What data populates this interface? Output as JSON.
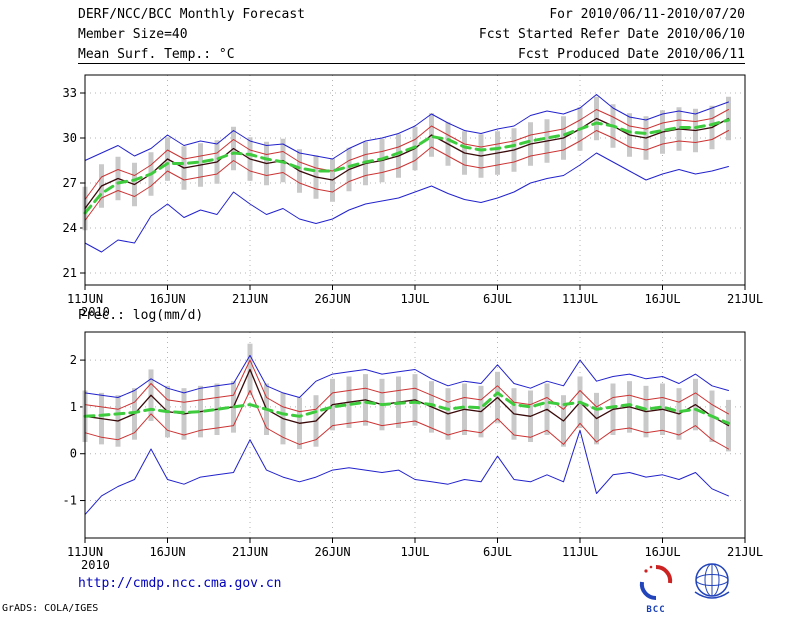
{
  "header": {
    "title": "DERF/NCC/BCC Monthly Forecast",
    "member_size": "Member Size=40",
    "panel1_label": "Mean Surf. Temp.: °C",
    "panel2_label": "Prec.: log(mm/d)",
    "for_range": "For 2010/06/11-2010/07/20",
    "refer_date": "Fcst Started Refer Date 2010/06/10",
    "produced_date": "Fcst Produced Date 2010/06/11"
  },
  "footer": {
    "url": "http://cmdp.ncc.cma.gov.cn",
    "credit": "GrADS: COLA/IGES",
    "bcc_logo_label": "BCC"
  },
  "colors": {
    "envelope_blue": "#2222cc",
    "quartile_red": "#cc3333",
    "mean_dark": "#3a0a0a",
    "climatology_green": "#3ecc3e",
    "spread_bar_gray": "#c9c9c9",
    "grid_gray": "#b4b4b4"
  },
  "chart_data": [
    {
      "type": "line",
      "title": "Mean Surf. Temp.: °C",
      "ylabel": "°C",
      "ylim": [
        20.2,
        34.2
      ],
      "yticks": [
        21,
        24,
        27,
        30,
        33
      ],
      "x_ticks": [
        "11JUN",
        "16JUN",
        "21JUN",
        "26JUN",
        "1JUL",
        "6JUL",
        "11JUL",
        "16JUL",
        "21JUL"
      ],
      "x_tick_days": [
        0,
        5,
        10,
        15,
        20,
        25,
        30,
        35,
        40
      ],
      "x_year_label": "2010",
      "n_days": 40,
      "grid": true,
      "legend": "none",
      "bars": {
        "center_series": 2,
        "half_width": 1.45,
        "color": "#c9c9c9"
      },
      "series": [
        {
          "name": "ensemble-max",
          "color": "#2222cc",
          "width": 1,
          "values": [
            28.5,
            29.0,
            29.5,
            28.8,
            29.3,
            30.2,
            29.5,
            29.8,
            29.6,
            30.5,
            29.8,
            29.5,
            29.6,
            29.0,
            28.8,
            28.6,
            29.3,
            29.8,
            30.0,
            30.3,
            30.8,
            31.6,
            31.0,
            30.5,
            30.3,
            30.6,
            30.8,
            31.5,
            31.8,
            31.6,
            32.0,
            32.9,
            32.0,
            31.4,
            31.2,
            31.6,
            31.8,
            31.6,
            32.0,
            32.4
          ]
        },
        {
          "name": "upper-quartile",
          "color": "#cc3333",
          "width": 1,
          "values": [
            25.9,
            27.4,
            27.9,
            27.5,
            28.2,
            29.2,
            28.6,
            28.8,
            29.0,
            29.9,
            29.2,
            28.9,
            29.1,
            28.4,
            28.0,
            27.8,
            28.5,
            28.9,
            29.1,
            29.4,
            29.9,
            30.8,
            30.2,
            29.6,
            29.4,
            29.6,
            29.8,
            30.2,
            30.4,
            30.6,
            31.2,
            31.9,
            31.4,
            30.8,
            30.6,
            31.0,
            31.2,
            31.1,
            31.3,
            31.9
          ]
        },
        {
          "name": "ensemble-mean",
          "color": "#3a0a0a",
          "width": 1.3,
          "values": [
            25.3,
            26.8,
            27.3,
            26.9,
            27.6,
            28.6,
            28.0,
            28.2,
            28.4,
            29.3,
            28.6,
            28.3,
            28.5,
            27.8,
            27.4,
            27.2,
            27.9,
            28.3,
            28.5,
            28.8,
            29.3,
            30.2,
            29.6,
            29.0,
            28.8,
            29.0,
            29.2,
            29.6,
            29.8,
            30.0,
            30.6,
            31.3,
            30.8,
            30.2,
            30.0,
            30.4,
            30.6,
            30.5,
            30.7,
            31.3
          ]
        },
        {
          "name": "lower-quartile",
          "color": "#cc3333",
          "width": 1,
          "values": [
            24.5,
            26.0,
            26.5,
            26.1,
            26.8,
            27.8,
            27.2,
            27.4,
            27.6,
            28.5,
            27.8,
            27.5,
            27.7,
            27.0,
            26.6,
            26.4,
            27.1,
            27.5,
            27.7,
            28.0,
            28.5,
            29.4,
            28.8,
            28.2,
            28.0,
            28.2,
            28.4,
            28.8,
            29.0,
            29.2,
            29.8,
            30.5,
            30.0,
            29.4,
            29.2,
            29.6,
            29.8,
            29.7,
            29.9,
            30.5
          ]
        },
        {
          "name": "ensemble-min",
          "color": "#2222cc",
          "width": 1,
          "values": [
            23.0,
            22.4,
            23.2,
            23.0,
            24.8,
            25.6,
            24.7,
            25.2,
            24.9,
            26.4,
            25.6,
            24.9,
            25.3,
            24.6,
            24.3,
            24.6,
            25.2,
            25.6,
            25.8,
            26.0,
            26.4,
            26.8,
            26.3,
            25.9,
            25.7,
            26.0,
            26.4,
            27.0,
            27.3,
            27.5,
            28.2,
            29.0,
            28.4,
            27.8,
            27.2,
            27.6,
            27.9,
            27.6,
            27.8,
            28.1
          ]
        },
        {
          "name": "climatology",
          "color": "#3ecc3e",
          "width": 3,
          "dash": "9,6",
          "values": [
            25.0,
            26.3,
            27.0,
            27.2,
            27.6,
            28.3,
            28.3,
            28.4,
            28.6,
            29.0,
            28.9,
            28.6,
            28.4,
            28.0,
            27.8,
            27.8,
            28.1,
            28.4,
            28.6,
            29.0,
            29.4,
            30.1,
            29.9,
            29.4,
            29.2,
            29.3,
            29.5,
            29.8,
            30.0,
            30.2,
            30.6,
            31.0,
            30.8,
            30.4,
            30.3,
            30.5,
            30.7,
            30.7,
            30.9,
            31.2
          ]
        }
      ]
    },
    {
      "type": "line",
      "title": "Prec.: log(mm/d)",
      "ylabel": "log(mm/d)",
      "ylim": [
        -1.8,
        2.6
      ],
      "yticks": [
        -1,
        0,
        1,
        2
      ],
      "x_ticks": [
        "11JUN",
        "16JUN",
        "21JUN",
        "26JUN",
        "1JUL",
        "6JUL",
        "11JUL",
        "16JUL",
        "21JUL"
      ],
      "x_tick_days": [
        0,
        5,
        10,
        15,
        20,
        25,
        30,
        35,
        40
      ],
      "x_year_label": "2010",
      "n_days": 40,
      "grid": true,
      "legend": "none",
      "bars": {
        "center_series": 2,
        "half_width": 0.55,
        "color": "#c9c9c9"
      },
      "series": [
        {
          "name": "ensemble-max",
          "color": "#2222cc",
          "width": 1,
          "values": [
            1.3,
            1.25,
            1.2,
            1.35,
            1.6,
            1.4,
            1.3,
            1.4,
            1.45,
            1.5,
            2.1,
            1.45,
            1.3,
            1.2,
            1.55,
            1.7,
            1.75,
            1.8,
            1.7,
            1.75,
            1.8,
            1.6,
            1.45,
            1.55,
            1.5,
            1.9,
            1.5,
            1.4,
            1.55,
            1.45,
            2.0,
            1.55,
            1.65,
            1.7,
            1.6,
            1.65,
            1.5,
            1.7,
            1.45,
            1.35
          ]
        },
        {
          "name": "upper-quartile",
          "color": "#cc3333",
          "width": 1,
          "values": [
            1.05,
            1.0,
            0.95,
            1.1,
            1.5,
            1.15,
            1.1,
            1.15,
            1.2,
            1.25,
            2.0,
            1.2,
            1.0,
            0.9,
            0.95,
            1.3,
            1.35,
            1.4,
            1.3,
            1.35,
            1.4,
            1.25,
            1.1,
            1.2,
            1.15,
            1.45,
            1.1,
            1.05,
            1.2,
            0.95,
            1.35,
            1.0,
            1.2,
            1.25,
            1.15,
            1.2,
            1.1,
            1.3,
            1.05,
            0.85
          ]
        },
        {
          "name": "ensemble-mean",
          "color": "#3a0a0a",
          "width": 1.3,
          "values": [
            0.8,
            0.75,
            0.7,
            0.85,
            1.25,
            0.9,
            0.85,
            0.9,
            0.95,
            1.0,
            1.8,
            0.95,
            0.75,
            0.65,
            0.7,
            1.05,
            1.1,
            1.15,
            1.05,
            1.1,
            1.15,
            1.0,
            0.85,
            0.95,
            0.9,
            1.2,
            0.85,
            0.8,
            0.95,
            0.7,
            1.1,
            0.75,
            0.95,
            1.0,
            0.9,
            0.95,
            0.85,
            1.05,
            0.8,
            0.6
          ]
        },
        {
          "name": "lower-quartile",
          "color": "#cc3333",
          "width": 1,
          "values": [
            0.45,
            0.35,
            0.3,
            0.45,
            0.85,
            0.5,
            0.4,
            0.5,
            0.55,
            0.6,
            1.35,
            0.55,
            0.35,
            0.2,
            0.3,
            0.6,
            0.65,
            0.7,
            0.6,
            0.65,
            0.7,
            0.55,
            0.4,
            0.5,
            0.45,
            0.75,
            0.4,
            0.35,
            0.5,
            0.2,
            0.65,
            0.25,
            0.5,
            0.55,
            0.45,
            0.5,
            0.4,
            0.6,
            0.3,
            0.1
          ]
        },
        {
          "name": "ensemble-min",
          "color": "#2222cc",
          "width": 1,
          "values": [
            -1.3,
            -0.9,
            -0.7,
            -0.55,
            0.1,
            -0.55,
            -0.65,
            -0.5,
            -0.45,
            -0.4,
            0.3,
            -0.35,
            -0.5,
            -0.6,
            -0.5,
            -0.35,
            -0.3,
            -0.35,
            -0.4,
            -0.35,
            -0.55,
            -0.6,
            -0.65,
            -0.55,
            -0.6,
            -0.05,
            -0.55,
            -0.6,
            -0.45,
            -0.6,
            0.5,
            -0.85,
            -0.45,
            -0.4,
            -0.5,
            -0.45,
            -0.55,
            -0.4,
            -0.75,
            -0.9
          ]
        },
        {
          "name": "climatology",
          "color": "#3ecc3e",
          "width": 3,
          "dash": "9,6",
          "values": [
            0.8,
            0.82,
            0.85,
            0.88,
            0.95,
            0.9,
            0.88,
            0.9,
            0.95,
            1.0,
            1.05,
            0.95,
            0.85,
            0.8,
            0.9,
            1.0,
            1.05,
            1.1,
            1.05,
            1.08,
            1.1,
            1.05,
            0.95,
            1.0,
            0.98,
            1.3,
            1.05,
            1.0,
            1.1,
            1.05,
            1.1,
            0.95,
            1.0,
            1.05,
            0.95,
            1.0,
            0.9,
            0.95,
            0.8,
            0.65
          ]
        }
      ]
    }
  ]
}
